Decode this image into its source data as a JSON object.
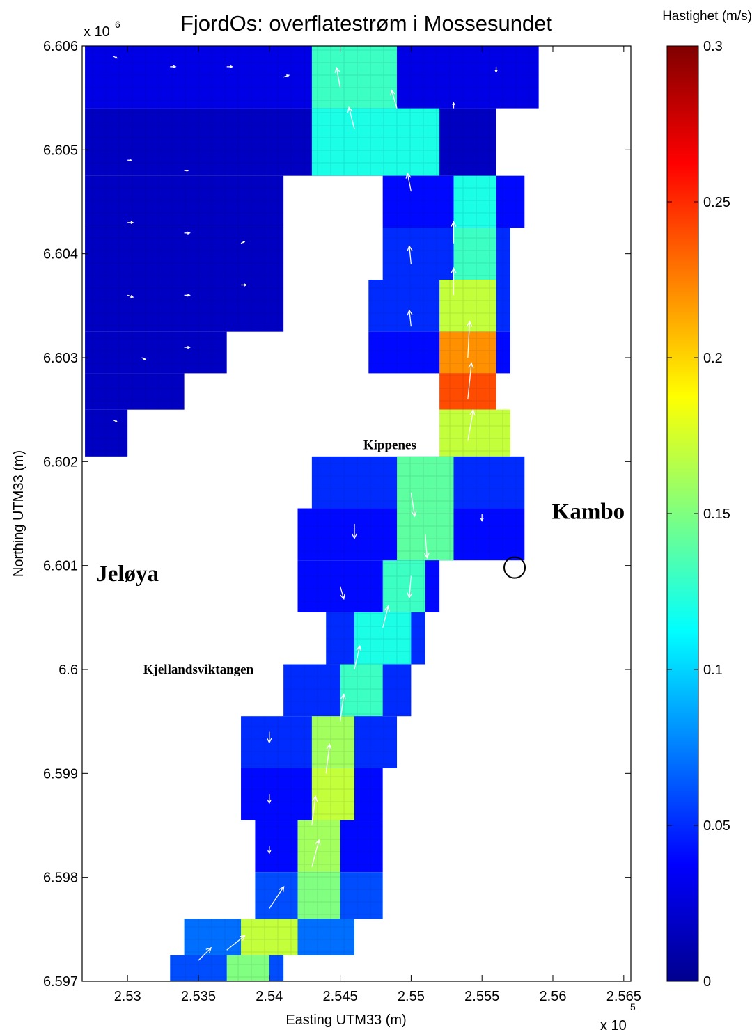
{
  "title": "FjordOs: overflatestrøm i Mossesundet",
  "xlabel": "Easting UTM33 (m)",
  "ylabel": "Northing UTM33 (m)",
  "x_exponent": "x 10",
  "x_exponent_power": "5",
  "y_exponent": "x 10",
  "y_exponent_power": "6",
  "colorbar_label": "Hastighet (m/s)",
  "x_ticks": [
    "2.53",
    "2.535",
    "2.54",
    "2.545",
    "2.55",
    "2.555",
    "2.56",
    "2.565"
  ],
  "y_ticks": [
    "6.606",
    "6.605",
    "6.604",
    "6.603",
    "6.602",
    "6.601",
    "6.6",
    "6.599",
    "6.598",
    "6.597"
  ],
  "colorbar_ticks": [
    "0.3",
    "0.25",
    "0.2",
    "0.15",
    "0.1",
    "0.05",
    "0"
  ],
  "places": {
    "jeloya": "Jeløya",
    "kambo": "Kambo",
    "kippenes": "Kippenes",
    "kjellandsviktangen": "Kjellandsviktangen"
  },
  "colormap": "jet",
  "marker": "open circle",
  "chart_data": {
    "type": "heatmap",
    "title": "FjordOs: overflatestrøm i Mossesundet",
    "xlabel": "Easting UTM33 (m)",
    "ylabel": "Northing UTM33 (m)",
    "xlim": [
      252680,
      256550
    ],
    "ylim": [
      6597000,
      6606000
    ],
    "color_range": [
      0,
      0.3
    ],
    "color_units": "m/s",
    "cell_size_m": 100,
    "domain_bounds_m": {
      "easting": [
        252680,
        255800
      ],
      "northing": [
        6597000,
        6606000
      ]
    },
    "surface_current_speed_by_row": [
      {
        "northing_m": 6605800,
        "cells": [
          [
            252700,
            255800,
            0.03
          ],
          [
            254300,
            254800,
            0.13
          ]
        ]
      },
      {
        "northing_m": 6605000,
        "cells": [
          [
            252700,
            255500,
            0.02
          ],
          [
            254300,
            255100,
            0.12
          ]
        ]
      },
      {
        "northing_m": 6604500,
        "cells": [
          [
            252700,
            254000,
            0.02
          ],
          [
            254800,
            255700,
            0.04
          ],
          [
            255300,
            255500,
            0.12
          ]
        ]
      },
      {
        "northing_m": 6604000,
        "cells": [
          [
            252700,
            254000,
            0.02
          ],
          [
            254800,
            255600,
            0.05
          ],
          [
            255300,
            255500,
            0.13
          ]
        ]
      },
      {
        "northing_m": 6603500,
        "cells": [
          [
            252700,
            254000,
            0.02
          ],
          [
            254700,
            255600,
            0.05
          ],
          [
            255200,
            255500,
            0.17
          ]
        ]
      },
      {
        "northing_m": 6603000,
        "cells": [
          [
            252700,
            253600,
            0.02
          ],
          [
            254700,
            255600,
            0.04
          ],
          [
            255200,
            255500,
            0.22
          ]
        ]
      },
      {
        "northing_m": 6602700,
        "cells": [
          [
            252700,
            253300,
            0.02
          ],
          [
            255200,
            255500,
            0.24
          ]
        ]
      },
      {
        "northing_m": 6602300,
        "cells": [
          [
            252700,
            252900,
            0.02
          ],
          [
            255200,
            255600,
            0.17
          ]
        ]
      },
      {
        "northing_m": 6601800,
        "cells": [
          [
            254300,
            255700,
            0.05
          ],
          [
            254900,
            255200,
            0.14
          ]
        ]
      },
      {
        "northing_m": 6601300,
        "cells": [
          [
            254200,
            255700,
            0.04
          ],
          [
            254900,
            255200,
            0.14
          ]
        ]
      },
      {
        "northing_m": 6600800,
        "cells": [
          [
            254200,
            255100,
            0.04
          ],
          [
            254800,
            255000,
            0.13
          ]
        ]
      },
      {
        "northing_m": 6600300,
        "cells": [
          [
            254400,
            255000,
            0.05
          ],
          [
            254600,
            254900,
            0.12
          ]
        ]
      },
      {
        "northing_m": 6599800,
        "cells": [
          [
            254100,
            254900,
            0.05
          ],
          [
            254500,
            254700,
            0.13
          ]
        ]
      },
      {
        "northing_m": 6599300,
        "cells": [
          [
            253800,
            254800,
            0.05
          ],
          [
            254300,
            254500,
            0.16
          ]
        ]
      },
      {
        "northing_m": 6598800,
        "cells": [
          [
            253800,
            254700,
            0.04
          ],
          [
            254300,
            254500,
            0.17
          ]
        ]
      },
      {
        "northing_m": 6598300,
        "cells": [
          [
            253900,
            254700,
            0.04
          ],
          [
            254200,
            254400,
            0.16
          ]
        ]
      },
      {
        "northing_m": 6597800,
        "cells": [
          [
            253900,
            254700,
            0.06
          ],
          [
            254200,
            254400,
            0.15
          ]
        ]
      },
      {
        "northing_m": 6597400,
        "cells": [
          [
            253400,
            254500,
            0.07
          ],
          [
            253800,
            254100,
            0.17
          ]
        ]
      },
      {
        "northing_m": 6597100,
        "cells": [
          [
            253300,
            254000,
            0.06
          ],
          [
            253700,
            253900,
            0.15
          ]
        ]
      }
    ],
    "current_arrows_m_per_s": [
      {
        "easting": 252900,
        "northing": 6605900,
        "u": 0.02,
        "v": -0.01
      },
      {
        "easting": 253300,
        "northing": 6605800,
        "u": 0.03,
        "v": 0.0
      },
      {
        "easting": 253700,
        "northing": 6605800,
        "u": 0.03,
        "v": 0.0
      },
      {
        "easting": 254100,
        "northing": 6605700,
        "u": 0.03,
        "v": 0.01
      },
      {
        "easting": 254500,
        "northing": 6605600,
        "u": -0.02,
        "v": 0.11
      },
      {
        "easting": 254600,
        "northing": 6605200,
        "u": -0.03,
        "v": 0.12
      },
      {
        "easting": 254900,
        "northing": 6605400,
        "u": -0.03,
        "v": 0.1
      },
      {
        "easting": 255300,
        "northing": 6605400,
        "u": 0.0,
        "v": 0.03
      },
      {
        "easting": 255600,
        "northing": 6605800,
        "u": 0.0,
        "v": -0.03
      },
      {
        "easting": 253000,
        "northing": 6604900,
        "u": 0.02,
        "v": 0.0
      },
      {
        "easting": 253400,
        "northing": 6604800,
        "u": 0.02,
        "v": 0.0
      },
      {
        "easting": 253000,
        "northing": 6604300,
        "u": 0.03,
        "v": 0.0
      },
      {
        "easting": 253400,
        "northing": 6604200,
        "u": 0.03,
        "v": 0.0
      },
      {
        "easting": 253800,
        "northing": 6604100,
        "u": 0.02,
        "v": 0.01
      },
      {
        "easting": 253000,
        "northing": 6603600,
        "u": 0.03,
        "v": -0.01
      },
      {
        "easting": 253400,
        "northing": 6603600,
        "u": 0.03,
        "v": 0.0
      },
      {
        "easting": 253800,
        "northing": 6603700,
        "u": 0.03,
        "v": 0.0
      },
      {
        "easting": 253100,
        "northing": 6603000,
        "u": 0.02,
        "v": -0.01
      },
      {
        "easting": 253400,
        "northing": 6603100,
        "u": 0.03,
        "v": 0.0
      },
      {
        "easting": 252900,
        "northing": 6602400,
        "u": 0.02,
        "v": -0.01
      },
      {
        "easting": 255000,
        "northing": 6604600,
        "u": -0.02,
        "v": 0.1
      },
      {
        "easting": 255300,
        "northing": 6604100,
        "u": 0.0,
        "v": 0.12
      },
      {
        "easting": 255000,
        "northing": 6603900,
        "u": -0.01,
        "v": 0.1
      },
      {
        "easting": 255300,
        "northing": 6603600,
        "u": 0.0,
        "v": 0.15
      },
      {
        "easting": 255000,
        "northing": 6603300,
        "u": -0.01,
        "v": 0.09
      },
      {
        "easting": 255400,
        "northing": 6603000,
        "u": 0.01,
        "v": 0.2
      },
      {
        "easting": 255400,
        "northing": 6602600,
        "u": 0.02,
        "v": 0.2
      },
      {
        "easting": 255400,
        "northing": 6602200,
        "u": 0.03,
        "v": 0.17
      },
      {
        "easting": 255000,
        "northing": 6601700,
        "u": 0.02,
        "v": -0.13
      },
      {
        "easting": 255100,
        "northing": 6601300,
        "u": 0.01,
        "v": -0.13
      },
      {
        "easting": 255000,
        "northing": 6600900,
        "u": -0.01,
        "v": -0.12
      },
      {
        "easting": 254600,
        "northing": 6601400,
        "u": 0.0,
        "v": -0.08
      },
      {
        "easting": 254500,
        "northing": 6600800,
        "u": 0.02,
        "v": -0.07
      },
      {
        "easting": 255500,
        "northing": 6601500,
        "u": 0.0,
        "v": -0.04
      },
      {
        "easting": 254800,
        "northing": 6600400,
        "u": 0.03,
        "v": 0.12
      },
      {
        "easting": 254600,
        "northing": 6600000,
        "u": 0.03,
        "v": 0.13
      },
      {
        "easting": 254500,
        "northing": 6599500,
        "u": 0.02,
        "v": 0.15
      },
      {
        "easting": 254400,
        "northing": 6599000,
        "u": 0.02,
        "v": 0.16
      },
      {
        "easting": 254300,
        "northing": 6598500,
        "u": 0.02,
        "v": 0.16
      },
      {
        "easting": 254300,
        "northing": 6598100,
        "u": 0.04,
        "v": 0.15
      },
      {
        "easting": 254000,
        "northing": 6597700,
        "u": 0.08,
        "v": 0.12
      },
      {
        "easting": 253700,
        "northing": 6597300,
        "u": 0.1,
        "v": 0.08
      },
      {
        "easting": 253500,
        "northing": 6597200,
        "u": 0.07,
        "v": 0.07
      },
      {
        "easting": 254000,
        "northing": 6599400,
        "u": 0.0,
        "v": -0.06
      },
      {
        "easting": 254000,
        "northing": 6598800,
        "u": 0.0,
        "v": -0.05
      },
      {
        "easting": 254000,
        "northing": 6598300,
        "u": 0.0,
        "v": -0.04
      }
    ],
    "annotations": [
      {
        "text": "Jeløya",
        "easting": 253000,
        "northing": 6600850
      },
      {
        "text": "Kambo",
        "easting": 256250,
        "northing": 6601450
      },
      {
        "text": "Kippenes",
        "easting": 254850,
        "northing": 6602120
      },
      {
        "text": "Kjellandsviktangen",
        "easting": 253500,
        "northing": 6599960
      }
    ],
    "marker_location": {
      "easting": 255730,
      "northing": 6600980
    }
  }
}
